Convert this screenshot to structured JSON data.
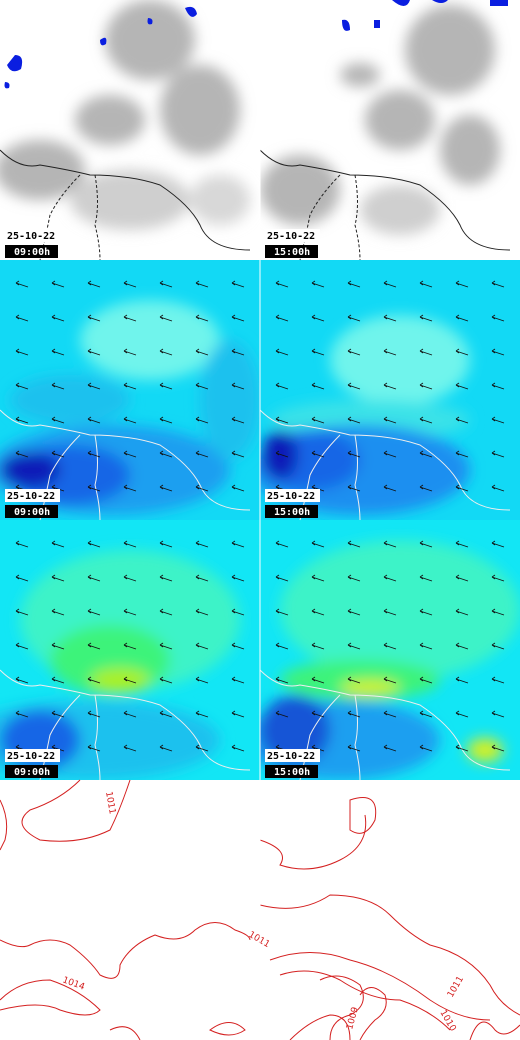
{
  "panels": [
    {
      "date": "25-10-22",
      "time": "09:00h"
    },
    {
      "date": "25-10-22",
      "time": "15:00h"
    },
    {
      "date": "25-10-22",
      "time": "09:00h"
    },
    {
      "date": "25-10-22",
      "time": "15:00h"
    },
    {
      "date": "25-10-22",
      "time": "09:00h"
    },
    {
      "date": "25-10-22",
      "time": "15:00h"
    }
  ],
  "contour_labels": {
    "left": [
      "1011",
      "1014"
    ],
    "right": [
      "1011",
      "1009",
      "1010",
      "1011"
    ]
  }
}
